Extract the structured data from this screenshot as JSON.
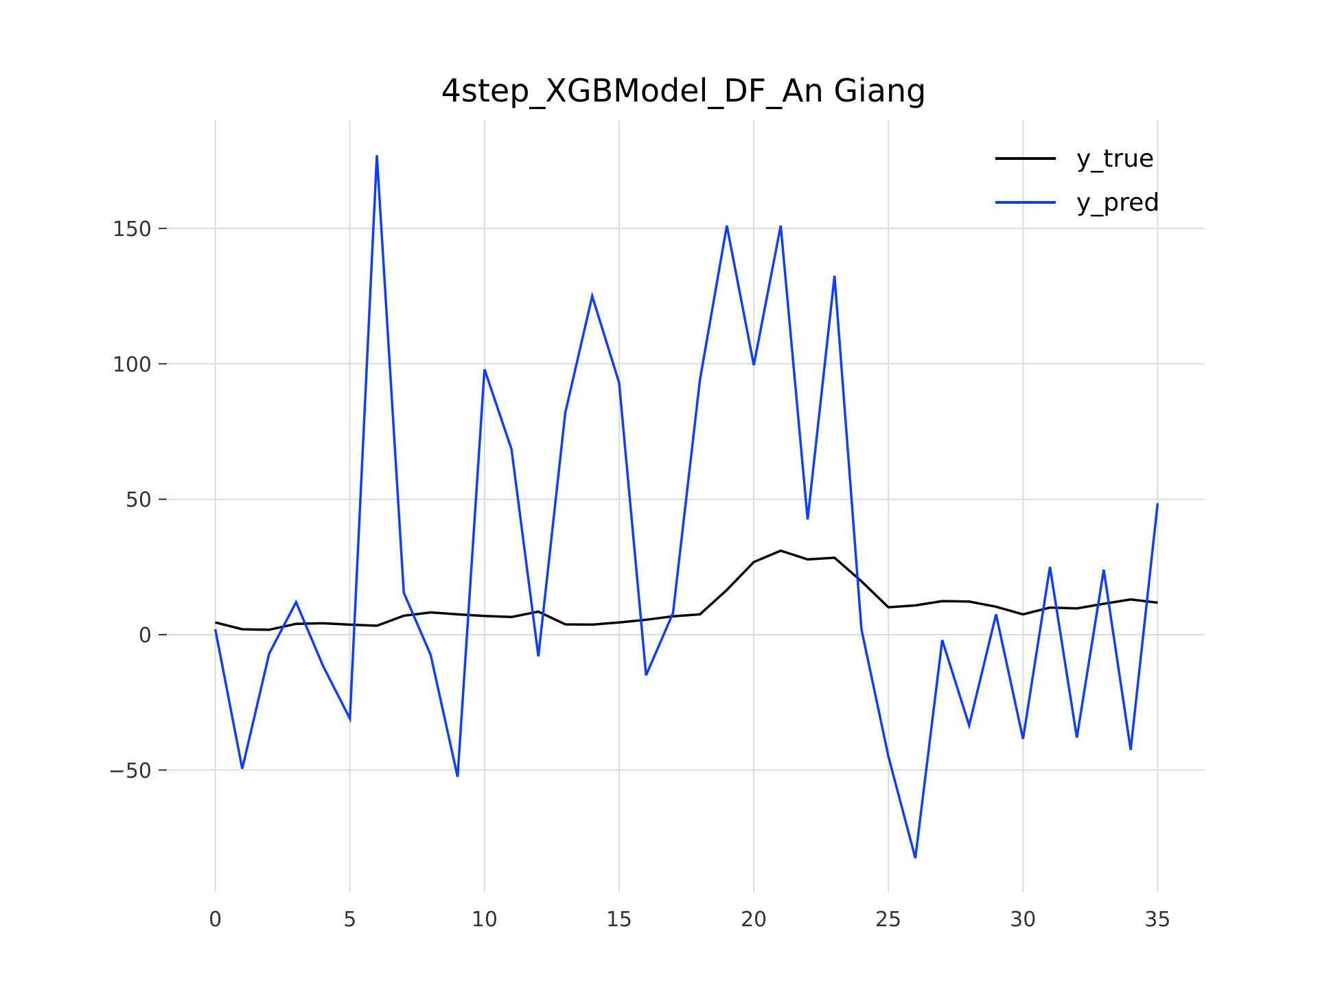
{
  "chart_data": {
    "type": "line",
    "title": "4step_XGBModel_DF_An Giang",
    "xlabel": "",
    "ylabel": "",
    "xlim": [
      -1.75,
      36.75
    ],
    "ylim": [
      -95,
      190
    ],
    "x_ticks": [
      0,
      5,
      10,
      15,
      20,
      25,
      30,
      35
    ],
    "y_ticks": [
      -50,
      0,
      50,
      100,
      150
    ],
    "x_tick_labels": [
      "0",
      "5",
      "10",
      "15",
      "20",
      "25",
      "30",
      "35"
    ],
    "y_tick_labels": [
      "−50",
      "0",
      "50",
      "100",
      "150"
    ],
    "grid": true,
    "legend_position": "top-right",
    "x": [
      0,
      1,
      2,
      3,
      4,
      5,
      6,
      7,
      8,
      9,
      10,
      11,
      12,
      13,
      14,
      15,
      16,
      17,
      18,
      19,
      20,
      21,
      22,
      23,
      24,
      25,
      26,
      27,
      28,
      29,
      30,
      31,
      32,
      33,
      34,
      35
    ],
    "series": [
      {
        "name": "y_true",
        "color": "#000000",
        "values": [
          4.5,
          2,
          1.8,
          4,
          4.2,
          3.7,
          3.3,
          7,
          8.2,
          7.5,
          6.9,
          6.5,
          8.5,
          3.8,
          3.7,
          4.5,
          5.5,
          6.8,
          7.5,
          16.5,
          26.8,
          31,
          27.8,
          28.4,
          19.7,
          10.1,
          10.8,
          12.4,
          12.2,
          10.3,
          7.5,
          10,
          9.7,
          11.4,
          13,
          11.8
        ]
      },
      {
        "name": "y_pred",
        "color": "#0d3dff",
        "values": [
          2,
          -49.5,
          -7,
          12,
          -11.5,
          -31,
          177,
          15.5,
          -7.5,
          -52.5,
          98,
          68.5,
          -8,
          82,
          125,
          93,
          -15,
          8,
          94,
          151,
          99.5,
          151,
          42.5,
          132.5,
          2,
          -45,
          -82.5,
          -2,
          -33.5,
          7.5,
          -38.5,
          25,
          -38,
          24,
          -42.5,
          48.5
        ]
      }
    ]
  }
}
